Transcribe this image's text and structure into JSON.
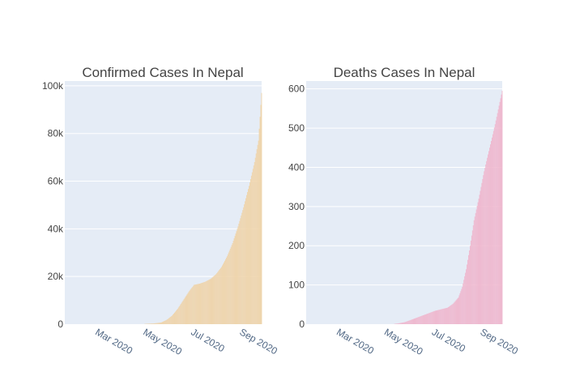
{
  "colors": {
    "background": "#ffffff",
    "plot_bg": "#e5ecf6",
    "grid": "#ffffff",
    "confirmed_bar": "#efd3a8",
    "deaths_bar": "#efb6cd",
    "title_text": "#444444",
    "tick_text": "#444444",
    "date_tick_text": "#506784"
  },
  "chart_data": [
    {
      "type": "bar",
      "title": "Confirmed Cases In Nepal",
      "xlabel": "",
      "ylabel": "",
      "x_axis_type": "date",
      "x_range": [
        "2020-01-23",
        "2020-09-30"
      ],
      "x_ticks": [
        "Mar 2020",
        "May 2020",
        "Jul 2020",
        "Sep 2020"
      ],
      "ylim": [
        0,
        102000
      ],
      "y_ticks": [
        "0",
        "20k",
        "40k",
        "60k",
        "80k",
        "100k"
      ],
      "grid": true,
      "color": "#efd3a8",
      "series_points": [
        {
          "date": "2020-01-23",
          "value": 1
        },
        {
          "date": "2020-03-20",
          "value": 1
        },
        {
          "date": "2020-04-15",
          "value": 16
        },
        {
          "date": "2020-05-01",
          "value": 60
        },
        {
          "date": "2020-05-15",
          "value": 300
        },
        {
          "date": "2020-05-25",
          "value": 700
        },
        {
          "date": "2020-06-01",
          "value": 1800
        },
        {
          "date": "2020-06-08",
          "value": 3600
        },
        {
          "date": "2020-06-15",
          "value": 6500
        },
        {
          "date": "2020-06-22",
          "value": 10000
        },
        {
          "date": "2020-06-30",
          "value": 14000
        },
        {
          "date": "2020-07-06",
          "value": 16500
        },
        {
          "date": "2020-07-13",
          "value": 17000
        },
        {
          "date": "2020-07-20",
          "value": 17800
        },
        {
          "date": "2020-07-27",
          "value": 19000
        },
        {
          "date": "2020-08-03",
          "value": 21000
        },
        {
          "date": "2020-08-10",
          "value": 24000
        },
        {
          "date": "2020-08-17",
          "value": 28500
        },
        {
          "date": "2020-08-24",
          "value": 34000
        },
        {
          "date": "2020-08-31",
          "value": 41000
        },
        {
          "date": "2020-09-07",
          "value": 49000
        },
        {
          "date": "2020-09-14",
          "value": 58000
        },
        {
          "date": "2020-09-21",
          "value": 68000
        },
        {
          "date": "2020-09-26",
          "value": 77000
        },
        {
          "date": "2020-09-30",
          "value": 97000
        }
      ]
    },
    {
      "type": "bar",
      "title": "Deaths Cases In Nepal",
      "xlabel": "",
      "ylabel": "",
      "x_axis_type": "date",
      "x_range": [
        "2020-01-23",
        "2020-09-30"
      ],
      "x_ticks": [
        "Mar 2020",
        "May 2020",
        "Jul 2020",
        "Sep 2020"
      ],
      "ylim": [
        0,
        620
      ],
      "y_ticks": [
        "0",
        "100",
        "200",
        "300",
        "400",
        "500",
        "600"
      ],
      "grid": true,
      "color": "#efb6cd",
      "series_points": [
        {
          "date": "2020-01-23",
          "value": 0
        },
        {
          "date": "2020-05-12",
          "value": 0
        },
        {
          "date": "2020-05-20",
          "value": 2
        },
        {
          "date": "2020-05-28",
          "value": 5
        },
        {
          "date": "2020-06-04",
          "value": 10
        },
        {
          "date": "2020-06-12",
          "value": 16
        },
        {
          "date": "2020-06-20",
          "value": 22
        },
        {
          "date": "2020-06-28",
          "value": 28
        },
        {
          "date": "2020-07-06",
          "value": 34
        },
        {
          "date": "2020-07-14",
          "value": 38
        },
        {
          "date": "2020-07-22",
          "value": 42
        },
        {
          "date": "2020-07-29",
          "value": 52
        },
        {
          "date": "2020-08-05",
          "value": 68
        },
        {
          "date": "2020-08-10",
          "value": 95
        },
        {
          "date": "2020-08-15",
          "value": 140
        },
        {
          "date": "2020-08-20",
          "value": 200
        },
        {
          "date": "2020-08-25",
          "value": 265
        },
        {
          "date": "2020-08-31",
          "value": 320
        },
        {
          "date": "2020-09-07",
          "value": 390
        },
        {
          "date": "2020-09-14",
          "value": 450
        },
        {
          "date": "2020-09-21",
          "value": 510
        },
        {
          "date": "2020-09-30",
          "value": 595
        }
      ]
    }
  ]
}
